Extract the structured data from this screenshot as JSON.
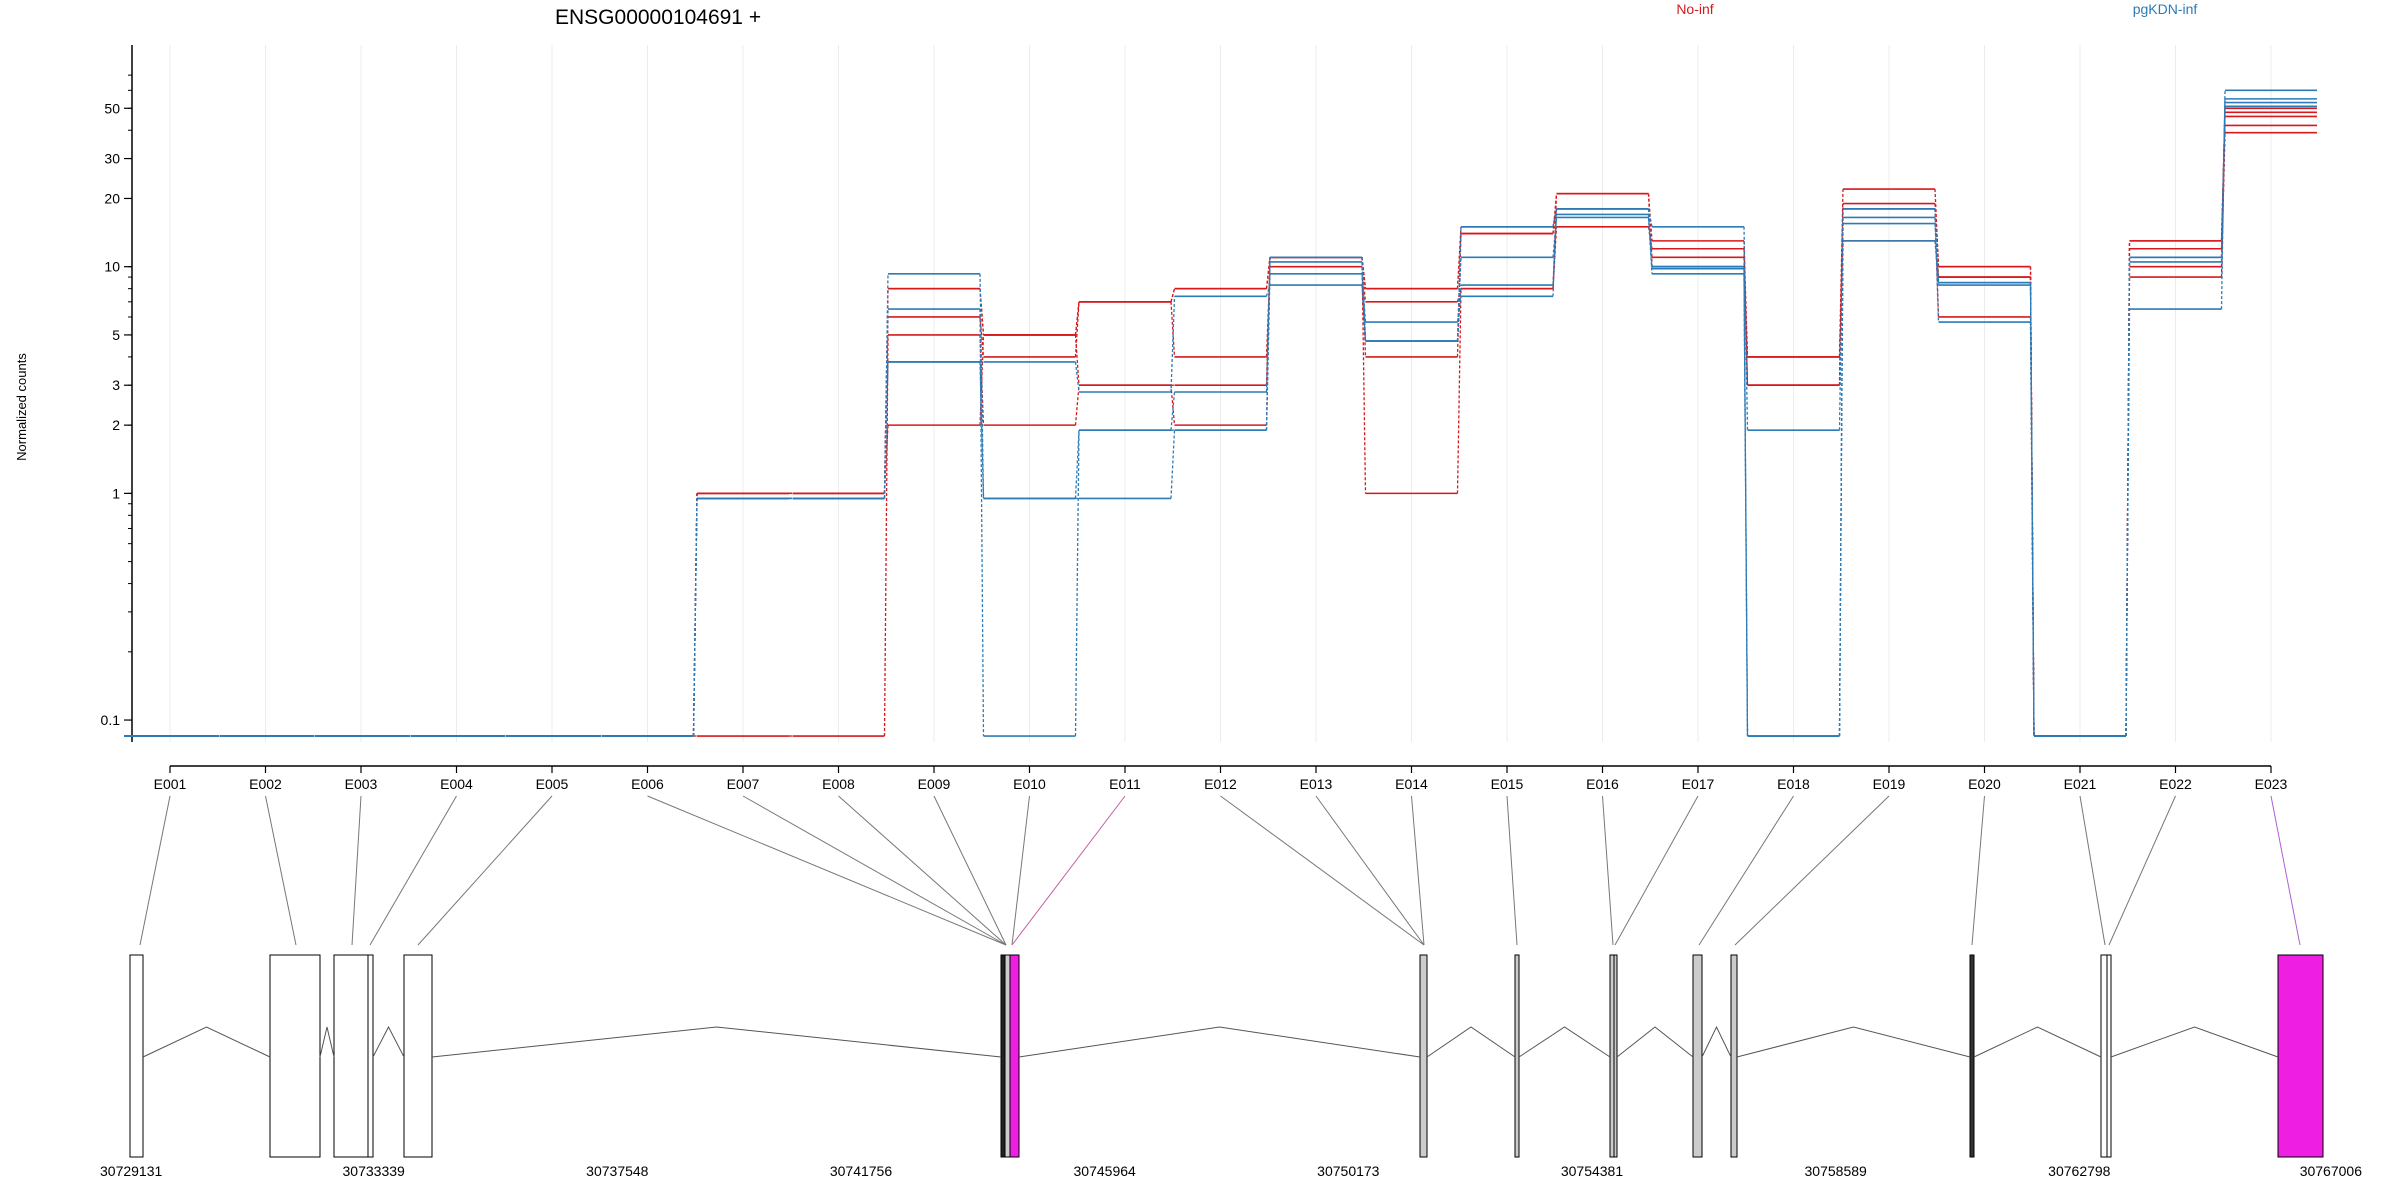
{
  "chart_data": {
    "type": "line",
    "title": "ENSG00000104691 +",
    "ylabel": "Normalized counts",
    "yscale": "log",
    "ylim": [
      0.08,
      80
    ],
    "yticks": [
      0.1,
      1,
      2,
      3,
      5,
      10,
      20,
      30,
      50
    ],
    "categories": [
      "E001",
      "E002",
      "E003",
      "E004",
      "E005",
      "E006",
      "E007",
      "E008",
      "E009",
      "E010",
      "E011",
      "E012",
      "E013",
      "E014",
      "E015",
      "E016",
      "E017",
      "E018",
      "E019",
      "E020",
      "E021",
      "E022",
      "E023"
    ],
    "legend": [
      {
        "name": "No-inf",
        "color": "#d7191c"
      },
      {
        "name": "pgKDN-inf",
        "color": "#2c7bb6"
      }
    ],
    "series": [
      {
        "name": "No-inf",
        "color": "#d7191c",
        "values": [
          0.085,
          0.085,
          0.085,
          0.085,
          0.085,
          0.085,
          1,
          1,
          8,
          5,
          7,
          8,
          11,
          8,
          14,
          21,
          13,
          4,
          22,
          10,
          0.085,
          13,
          48
        ]
      },
      {
        "name": "No-inf",
        "color": "#d7191c",
        "values": [
          0.085,
          0.085,
          0.085,
          0.085,
          0.085,
          0.085,
          1,
          1,
          6,
          4,
          7,
          4,
          10,
          7,
          8,
          15,
          12,
          3,
          18,
          9,
          0.085,
          12,
          46
        ]
      },
      {
        "name": "No-inf",
        "color": "#d7191c",
        "values": [
          0.085,
          0.085,
          0.085,
          0.085,
          0.085,
          0.085,
          0.085,
          0.085,
          5,
          2,
          3,
          3,
          11,
          4,
          14,
          18,
          11,
          3,
          18,
          6,
          0.085,
          10,
          39
        ]
      },
      {
        "name": "No-inf",
        "color": "#d7191c",
        "values": [
          0.085,
          0.085,
          0.085,
          0.085,
          0.085,
          0.085,
          1,
          1,
          2,
          5,
          3,
          2,
          11,
          1,
          8,
          21,
          10,
          4,
          13,
          9,
          0.085,
          9,
          42
        ]
      },
      {
        "name": "No-inf",
        "color": "#d7191c",
        "values": [
          0.085,
          0.085,
          0.085,
          0.085,
          0.085,
          0.085,
          1,
          1,
          8,
          5,
          7,
          8,
          11,
          8,
          15,
          18,
          10,
          3,
          19,
          10,
          0.085,
          13,
          50
        ]
      },
      {
        "name": "pgKDN-inf",
        "color": "#2c7bb6",
        "values": [
          0.085,
          0.085,
          0.085,
          0.085,
          0.085,
          0.085,
          0.95,
          0.95,
          9.3,
          0.95,
          0.95,
          1.9,
          9.3,
          5.7,
          7.4,
          18,
          15,
          1.9,
          18,
          8.5,
          0.085,
          6.5,
          60
        ]
      },
      {
        "name": "pgKDN-inf",
        "color": "#2c7bb6",
        "values": [
          0.085,
          0.085,
          0.085,
          0.085,
          0.085,
          0.085,
          0.95,
          0.95,
          3.8,
          3.8,
          2.8,
          7.4,
          8.3,
          4.7,
          11,
          16.5,
          9.3,
          0.085,
          15.5,
          8.3,
          0.085,
          11,
          53
        ]
      },
      {
        "name": "pgKDN-inf",
        "color": "#2c7bb6",
        "values": [
          0.085,
          0.085,
          0.085,
          0.085,
          0.085,
          0.085,
          0.95,
          0.95,
          6.5,
          0.085,
          1.9,
          2.8,
          10.5,
          4.7,
          15,
          18,
          9.8,
          0.085,
          16.5,
          5.7,
          0.085,
          10.5,
          55
        ]
      },
      {
        "name": "pgKDN-inf",
        "color": "#2c7bb6",
        "values": [
          0.085,
          0.085,
          0.085,
          0.085,
          0.085,
          0.085,
          0.95,
          0.95,
          3.8,
          0.95,
          1.9,
          1.9,
          11,
          4.7,
          8.3,
          17,
          10,
          0.085,
          13,
          8.5,
          0.085,
          11,
          51
        ]
      }
    ],
    "genomic_ticks": [
      "30729131",
      "30733339",
      "30737548",
      "30741756",
      "30745964",
      "30750173",
      "30754381",
      "30758589",
      "30762798",
      "30767006"
    ]
  }
}
